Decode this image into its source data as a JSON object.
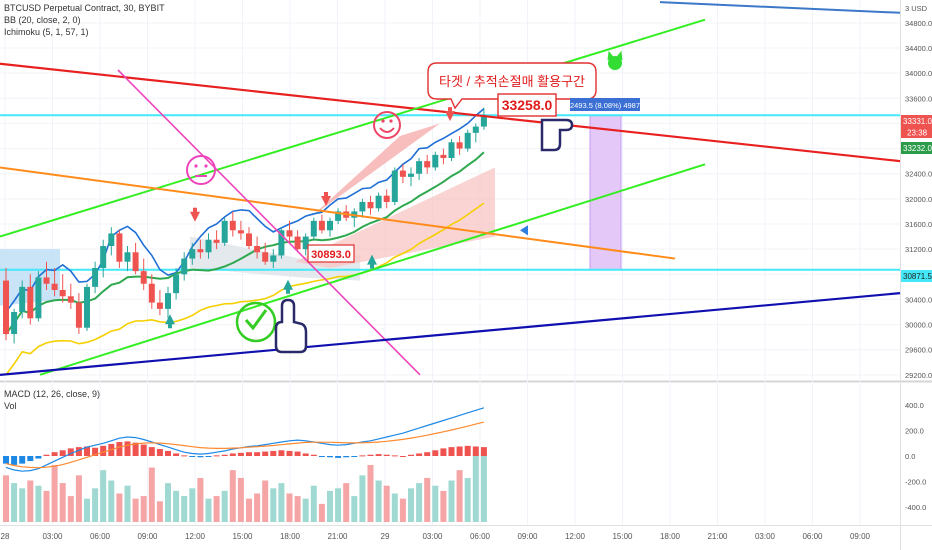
{
  "header": {
    "symbol_line": "BTCUSD Perpetual Contract, 30, BYBIT",
    "bb_line": "BB (20, close, 2, 0)",
    "ichimoku_line": "Ichimoku (5, 1, 57, 1)",
    "currency": "3 USD"
  },
  "annotations": {
    "callout": "타겟 / 추적손절매 활용구간",
    "target_price": "33258.0",
    "entry_price": "30893.0",
    "range_stats": "2493.5 (8.08%) 4987"
  },
  "price_tags": {
    "current": "33331.0",
    "countdown": "23:38",
    "secondary": "33232.0",
    "support": "30871.5"
  },
  "colors": {
    "up_candle": "#26a69a",
    "down_candle": "#ef5350",
    "green_channel": "#33ee22",
    "red_trend": "#e82020",
    "orange_trend": "#ff8c1a",
    "magenta_trend": "#ee44bb",
    "blue_trend": "#1010b0",
    "steel_trend": "#3c78c8",
    "cyan_level": "#44e8f8",
    "bb_basis": "#2fa84f",
    "ichimoku_blue": "#1e6fd6",
    "ichimoku_yellow": "#f5d000",
    "macd_line": "#1e88e5",
    "signal_line": "#ff8a30"
  },
  "chart_data": [
    {
      "type": "line",
      "title": "BTCUSD Perpetual Contract, 30, BYBIT",
      "y_axis_ticks": [
        29200,
        29600,
        30000,
        30400,
        30800,
        31200,
        31600,
        32000,
        32400,
        32800,
        33200,
        33600,
        34000,
        34400,
        34800
      ],
      "ylim": [
        29150,
        35100
      ],
      "x_axis_ticks": [
        "28",
        "03:00",
        "06:00",
        "09:00",
        "12:00",
        "15:00",
        "18:00",
        "21:00",
        "29",
        "03:00",
        "06:00",
        "09:00",
        "12:00",
        "15:00",
        "18:00",
        "21:00",
        "03:00",
        "06:00",
        "09:00"
      ],
      "levels": {
        "resistance": 33331.0,
        "support": 30871.5
      },
      "candles": [
        {
          "o": 30700,
          "h": 30900,
          "l": 29750,
          "c": 29850
        },
        {
          "o": 29850,
          "h": 30250,
          "l": 29700,
          "c": 30200
        },
        {
          "o": 30200,
          "h": 30700,
          "l": 30100,
          "c": 30600
        },
        {
          "o": 30600,
          "h": 30800,
          "l": 30000,
          "c": 30100
        },
        {
          "o": 30100,
          "h": 30850,
          "l": 30050,
          "c": 30750
        },
        {
          "o": 30750,
          "h": 31000,
          "l": 30550,
          "c": 30650
        },
        {
          "o": 30650,
          "h": 30900,
          "l": 30450,
          "c": 30550
        },
        {
          "o": 30550,
          "h": 30800,
          "l": 30350,
          "c": 30450
        },
        {
          "o": 30450,
          "h": 30650,
          "l": 30250,
          "c": 30350
        },
        {
          "o": 30350,
          "h": 30500,
          "l": 29850,
          "c": 29950
        },
        {
          "o": 29950,
          "h": 30650,
          "l": 29900,
          "c": 30600
        },
        {
          "o": 30600,
          "h": 31000,
          "l": 30500,
          "c": 30900
        },
        {
          "o": 30900,
          "h": 31350,
          "l": 30750,
          "c": 31250
        },
        {
          "o": 31250,
          "h": 31550,
          "l": 31100,
          "c": 31450
        },
        {
          "o": 31450,
          "h": 31500,
          "l": 30900,
          "c": 31000
        },
        {
          "o": 31000,
          "h": 31250,
          "l": 30850,
          "c": 31150
        },
        {
          "o": 31150,
          "h": 31300,
          "l": 30800,
          "c": 30850
        },
        {
          "o": 30850,
          "h": 31050,
          "l": 30550,
          "c": 30650
        },
        {
          "o": 30650,
          "h": 30800,
          "l": 30250,
          "c": 30350
        },
        {
          "o": 30350,
          "h": 30550,
          "l": 30150,
          "c": 30250
        },
        {
          "o": 30250,
          "h": 30600,
          "l": 30100,
          "c": 30500
        },
        {
          "o": 30500,
          "h": 30900,
          "l": 30400,
          "c": 30800
        },
        {
          "o": 30800,
          "h": 31150,
          "l": 30700,
          "c": 31050
        },
        {
          "o": 31050,
          "h": 31300,
          "l": 30950,
          "c": 31200
        },
        {
          "o": 31200,
          "h": 31350,
          "l": 31050,
          "c": 31150
        },
        {
          "o": 31150,
          "h": 31450,
          "l": 31050,
          "c": 31350
        },
        {
          "o": 31350,
          "h": 31500,
          "l": 31200,
          "c": 31300
        },
        {
          "o": 31300,
          "h": 31700,
          "l": 31250,
          "c": 31650
        },
        {
          "o": 31650,
          "h": 31800,
          "l": 31400,
          "c": 31500
        },
        {
          "o": 31500,
          "h": 31650,
          "l": 31350,
          "c": 31450
        },
        {
          "o": 31450,
          "h": 31550,
          "l": 31200,
          "c": 31250
        },
        {
          "o": 31250,
          "h": 31400,
          "l": 31050,
          "c": 31150
        },
        {
          "o": 31150,
          "h": 31300,
          "l": 30950,
          "c": 31000
        },
        {
          "o": 31000,
          "h": 31200,
          "l": 30900,
          "c": 31100
        },
        {
          "o": 31100,
          "h": 31550,
          "l": 31050,
          "c": 31500
        },
        {
          "o": 31500,
          "h": 31650,
          "l": 31300,
          "c": 31400
        },
        {
          "o": 31400,
          "h": 31500,
          "l": 31150,
          "c": 31200
        },
        {
          "o": 31200,
          "h": 31450,
          "l": 31100,
          "c": 31400
        },
        {
          "o": 31400,
          "h": 31700,
          "l": 31350,
          "c": 31650
        },
        {
          "o": 31650,
          "h": 31750,
          "l": 31450,
          "c": 31500
        },
        {
          "o": 31500,
          "h": 31700,
          "l": 31400,
          "c": 31650
        },
        {
          "o": 31650,
          "h": 31850,
          "l": 31600,
          "c": 31800
        },
        {
          "o": 31800,
          "h": 31900,
          "l": 31650,
          "c": 31700
        },
        {
          "o": 31700,
          "h": 31850,
          "l": 31550,
          "c": 31800
        },
        {
          "o": 31800,
          "h": 32000,
          "l": 31700,
          "c": 31950
        },
        {
          "o": 31950,
          "h": 32050,
          "l": 31750,
          "c": 31850
        },
        {
          "o": 31850,
          "h": 32100,
          "l": 31800,
          "c": 32050
        },
        {
          "o": 32050,
          "h": 32150,
          "l": 31850,
          "c": 31950
        },
        {
          "o": 31950,
          "h": 32500,
          "l": 31900,
          "c": 32450
        },
        {
          "o": 32450,
          "h": 32550,
          "l": 32250,
          "c": 32350
        },
        {
          "o": 32350,
          "h": 32500,
          "l": 32200,
          "c": 32400
        },
        {
          "o": 32400,
          "h": 32650,
          "l": 32300,
          "c": 32600
        },
        {
          "o": 32600,
          "h": 32700,
          "l": 32400,
          "c": 32500
        },
        {
          "o": 32500,
          "h": 32750,
          "l": 32450,
          "c": 32700
        },
        {
          "o": 32700,
          "h": 32800,
          "l": 32550,
          "c": 32650
        },
        {
          "o": 32650,
          "h": 32950,
          "l": 32600,
          "c": 32900
        },
        {
          "o": 32900,
          "h": 33000,
          "l": 32700,
          "c": 32800
        },
        {
          "o": 32800,
          "h": 33100,
          "l": 32750,
          "c": 33050
        },
        {
          "o": 33050,
          "h": 33200,
          "l": 32900,
          "c": 33150
        },
        {
          "o": 33150,
          "h": 33450,
          "l": 33100,
          "c": 33331
        }
      ]
    },
    {
      "type": "bar",
      "title": "MACD (12, 26, close, 9)",
      "subtitle": "Vol",
      "y_axis_ticks": [
        400.0,
        200.0,
        0.0,
        -200.0,
        -400.0
      ],
      "ylim": [
        -520,
        520
      ],
      "histogram": [
        -60,
        -70,
        -60,
        -40,
        -20,
        10,
        30,
        45,
        60,
        70,
        75,
        65,
        80,
        95,
        110,
        115,
        105,
        90,
        70,
        55,
        40,
        20,
        5,
        -5,
        -10,
        -5,
        5,
        10,
        20,
        25,
        30,
        30,
        35,
        40,
        45,
        40,
        35,
        20,
        10,
        -5,
        -10,
        -15,
        -10,
        -5,
        5,
        10,
        15,
        10,
        5,
        0,
        10,
        20,
        30,
        45,
        60,
        70,
        75,
        80,
        75,
        70
      ],
      "macd_line": [
        -90,
        -110,
        -120,
        -115,
        -100,
        -70,
        -40,
        -10,
        20,
        45,
        70,
        85,
        100,
        120,
        140,
        150,
        145,
        130,
        110,
        90,
        70,
        50,
        30,
        20,
        15,
        20,
        30,
        40,
        55,
        65,
        75,
        80,
        90,
        100,
        110,
        120,
        125,
        120,
        110,
        100,
        90,
        85,
        90,
        100,
        110,
        120,
        135,
        150,
        165,
        180,
        200,
        220,
        240,
        260,
        280,
        300,
        320,
        340,
        360,
        380
      ],
      "signal_line": [
        -60,
        -75,
        -85,
        -90,
        -92,
        -88,
        -80,
        -68,
        -50,
        -30,
        -10,
        10,
        30,
        50,
        70,
        85,
        95,
        102,
        104,
        102,
        97,
        90,
        82,
        73,
        66,
        62,
        60,
        60,
        62,
        65,
        69,
        73,
        78,
        83,
        89,
        95,
        102,
        107,
        109,
        109,
        108,
        106,
        104,
        103,
        104,
        106,
        110,
        116,
        123,
        131,
        141,
        152,
        164,
        177,
        191,
        205,
        220,
        235,
        251,
        267
      ],
      "volume": [
        180,
        150,
        130,
        160,
        140,
        120,
        220,
        150,
        100,
        180,
        90,
        130,
        200,
        160,
        110,
        140,
        90,
        100,
        210,
        80,
        150,
        120,
        100,
        130,
        170,
        90,
        100,
        120,
        200,
        170,
        90,
        110,
        160,
        130,
        150,
        110,
        100,
        90,
        140,
        70,
        120,
        130,
        150,
        100,
        180,
        220,
        160,
        140,
        110,
        90,
        130,
        150,
        170,
        140,
        120,
        160,
        200,
        170,
        260,
        270
      ]
    }
  ]
}
